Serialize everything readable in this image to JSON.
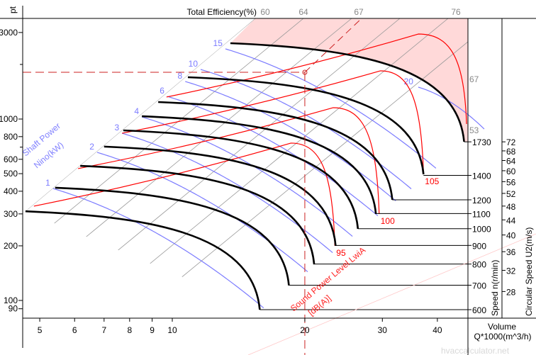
{
  "chart_data": {
    "type": "line",
    "title": "",
    "y_axis": {
      "label": "pt",
      "scale": "log",
      "range": [
        85,
        3600
      ],
      "ticks": [
        3000,
        1000,
        800,
        600,
        500,
        400,
        300,
        200,
        100,
        90
      ]
    },
    "x_axis": {
      "label_line1": "Volume",
      "label_line2": "Q*1000(m^3/h)",
      "scale": "log",
      "range": [
        4.57,
        46.9
      ],
      "ticks": [
        5,
        6,
        7,
        8,
        9,
        10,
        20,
        30,
        40
      ]
    },
    "top_axis": {
      "label": "Total Efficiency(%)",
      "ticks": [
        "60",
        "64",
        "67",
        "76"
      ]
    },
    "efficiency_side_labels": [
      "67",
      "53"
    ],
    "speed_axis": {
      "label": "Speed n(r/min)",
      "ticks": [
        "1730",
        "1400",
        "1200",
        "1100",
        "1000",
        "900",
        "800",
        "700",
        "600"
      ]
    },
    "u2_axis": {
      "label": "Circular Speed U2(m/s)",
      "ticks": [
        72,
        68,
        64,
        60,
        56,
        52,
        48,
        44,
        40,
        36,
        32,
        28
      ]
    },
    "speed_curves": [
      {
        "speed": 600,
        "start": [
          4.64,
          310
        ],
        "end": [
          15.8,
          89
        ]
      },
      {
        "speed": 700,
        "start": [
          5.42,
          418
        ],
        "end": [
          18.4,
          121
        ]
      },
      {
        "speed": 800,
        "start": [
          6.18,
          552
        ],
        "end": [
          21.0,
          158
        ]
      },
      {
        "speed": 900,
        "start": [
          7.0,
          705
        ],
        "end": [
          23.5,
          200
        ]
      },
      {
        "speed": 1000,
        "start": [
          7.74,
          866
        ],
        "end": [
          26.4,
          248
        ]
      },
      {
        "speed": 1100,
        "start": [
          8.53,
          1036
        ],
        "end": [
          29.0,
          300
        ]
      },
      {
        "speed": 1200,
        "start": [
          9.29,
          1241
        ],
        "end": [
          31.6,
          359
        ]
      },
      {
        "speed": 1400,
        "start": [
          10.85,
          1700
        ],
        "end": [
          37.2,
          496
        ]
      },
      {
        "speed": 1730,
        "start": [
          13.55,
          2618
        ],
        "end": [
          46.0,
          750
        ]
      }
    ],
    "shaft_power": {
      "label_line1": "Nino(kW)",
      "label_line2": "Shaft Power",
      "color": "#7b7bff",
      "lines": [
        {
          "label": "1",
          "start": [
            5.36,
            414
          ]
        },
        {
          "label": "2",
          "start": [
            6.75,
            655
          ]
        },
        {
          "label": "3",
          "start": [
            7.69,
            835
          ]
        },
        {
          "label": "4",
          "start": [
            8.53,
            1027
          ]
        },
        {
          "label": "6",
          "start": [
            9.74,
            1333
          ]
        },
        {
          "label": "8",
          "start": [
            10.7,
            1611
          ]
        },
        {
          "label": "10",
          "start": [
            11.6,
            1877
          ]
        },
        {
          "label": "15",
          "start": [
            13.2,
            2437
          ]
        },
        {
          "label": "20",
          "start": [
            36.2,
            1499
          ]
        }
      ]
    },
    "sound_power": {
      "label_line1": "Sound Power Level LwiA",
      "label_line2": "[dB(A)]",
      "color": "#ff0000",
      "lines": [
        {
          "label": "95",
          "start": [
            4.85,
            331
          ],
          "peak": [
            18.6,
            737
          ],
          "end": [
            23.4,
            200
          ]
        },
        {
          "label": "100",
          "start": [
            6.11,
            533
          ],
          "peak": [
            23.2,
            1155
          ],
          "end": [
            29.5,
            300
          ]
        },
        {
          "label": "105",
          "start": [
            7.69,
            835
          ],
          "peak": [
            29.7,
            1844
          ],
          "end": [
            37.2,
            496
          ]
        },
        {
          "label": "",
          "start": [
            9.7,
            1322
          ],
          "peak": [
            36.2,
            2942
          ],
          "end": [
            46.6,
            939
          ]
        }
      ]
    },
    "operating_point": {
      "Q": 20,
      "pt": 1810,
      "color": "#cc2222"
    },
    "forbidden_region_color": "#ffd9d9",
    "curve_color": "#000000",
    "efficiency_line_color": "#999999",
    "watermark": "hvaccalculator.net"
  }
}
